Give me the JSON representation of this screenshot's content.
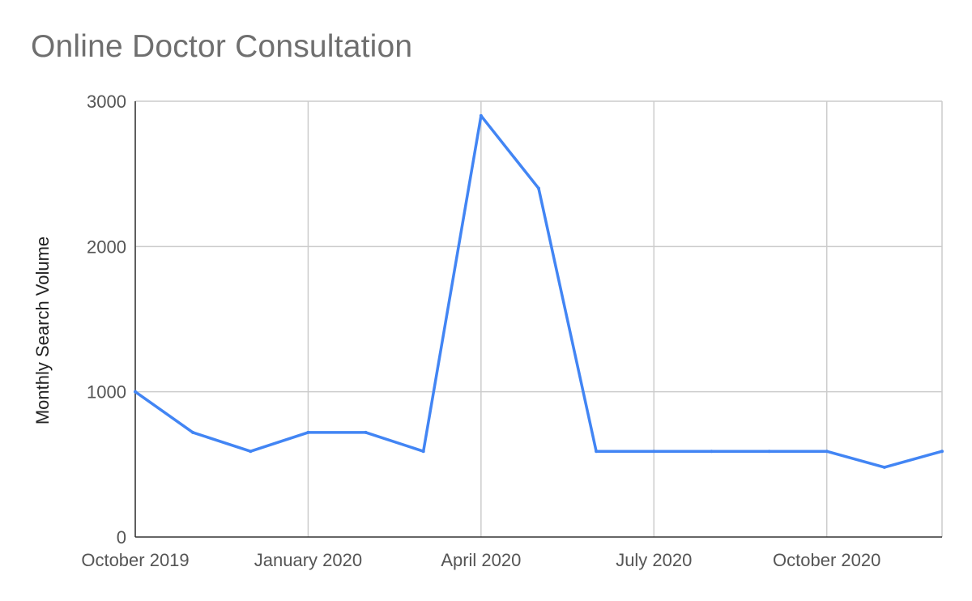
{
  "chart_data": {
    "type": "line",
    "title": "Online Doctor Consultation",
    "xlabel": "",
    "ylabel": "Monthly Search Volume",
    "x": [
      "2019-10",
      "2019-11",
      "2019-12",
      "2020-01",
      "2020-02",
      "2020-03",
      "2020-04",
      "2020-05",
      "2020-06",
      "2020-07",
      "2020-08",
      "2020-09",
      "2020-10",
      "2020-11",
      "2020-12"
    ],
    "series": [
      {
        "values": [
          1000,
          720,
          590,
          720,
          720,
          590,
          2900,
          2400,
          590,
          590,
          590,
          590,
          590,
          480,
          590
        ]
      }
    ],
    "ylim": [
      0,
      3000
    ],
    "y_ticks": [
      0,
      1000,
      2000,
      3000
    ],
    "x_ticks": [
      {
        "x": "2019-10",
        "label": "October 2019"
      },
      {
        "x": "2020-01",
        "label": "January 2020"
      },
      {
        "x": "2020-04",
        "label": "April 2020"
      },
      {
        "x": "2020-07",
        "label": "July 2020"
      },
      {
        "x": "2020-10",
        "label": "October 2020"
      }
    ],
    "grid": true,
    "legend": "none",
    "colors": {
      "line": "#4285f4",
      "grid": "#cccccc",
      "axis": "#333333",
      "title": "#6f6f6f"
    }
  }
}
